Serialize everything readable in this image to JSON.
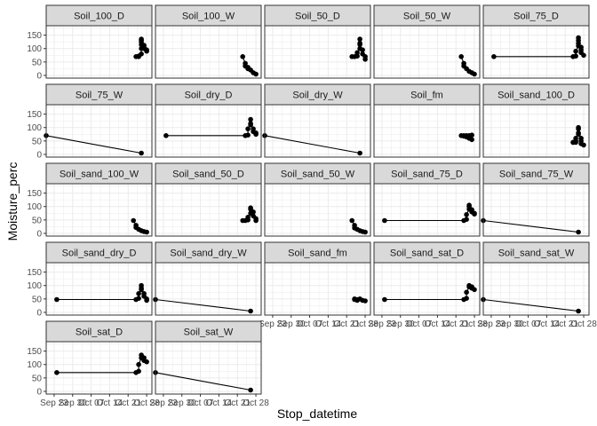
{
  "chart_data": {
    "type": "line",
    "xlabel": "Stop_datetime",
    "ylabel": "Moisture_perc",
    "ylim": [
      -10,
      185
    ],
    "y_ticks": [
      0,
      50,
      100,
      150
    ],
    "x_domain": [
      "2023-09-20",
      "2023-10-30"
    ],
    "x_ticks": [
      {
        "date": "2023-09-23",
        "label": "Sep 23"
      },
      {
        "date": "2023-09-30",
        "label": "Sep 30"
      },
      {
        "date": "2023-10-07",
        "label": "Oct 07"
      },
      {
        "date": "2023-10-14",
        "label": "Oct 14"
      },
      {
        "date": "2023-10-21",
        "label": "Oct 21"
      },
      {
        "date": "2023-10-28",
        "label": "Oct 28"
      }
    ],
    "grid": true,
    "colors": {
      "panel_border": "#333333",
      "strip_fill": "#d9d9d9",
      "grid": "#ebebeb",
      "series": "#000000"
    },
    "panels": [
      {
        "name": "Soil_100_D",
        "points": [
          [
            "2023-10-24",
            70
          ],
          [
            "2023-10-25",
            70
          ],
          [
            "2023-10-25",
            72
          ],
          [
            "2023-10-26",
            80
          ],
          [
            "2023-10-26",
            100
          ],
          [
            "2023-10-26",
            115
          ],
          [
            "2023-10-26",
            130
          ],
          [
            "2023-10-26",
            135
          ],
          [
            "2023-10-26",
            125
          ],
          [
            "2023-10-27",
            112
          ],
          [
            "2023-10-27",
            105
          ],
          [
            "2023-10-27",
            100
          ],
          [
            "2023-10-28",
            95
          ],
          [
            "2023-10-28",
            90
          ]
        ]
      },
      {
        "name": "Soil_100_W",
        "points": [
          [
            "2023-10-23",
            70
          ],
          [
            "2023-10-24",
            45
          ],
          [
            "2023-10-24",
            35
          ],
          [
            "2023-10-25",
            30
          ],
          [
            "2023-10-25",
            25
          ],
          [
            "2023-10-26",
            20
          ],
          [
            "2023-10-27",
            10
          ],
          [
            "2023-10-28",
            5
          ]
        ]
      },
      {
        "name": "Soil_50_D",
        "points": [
          [
            "2023-10-23",
            70
          ],
          [
            "2023-10-24",
            70
          ],
          [
            "2023-10-25",
            72
          ],
          [
            "2023-10-25",
            85
          ],
          [
            "2023-10-26",
            100
          ],
          [
            "2023-10-26",
            120
          ],
          [
            "2023-10-26",
            135
          ],
          [
            "2023-10-26",
            115
          ],
          [
            "2023-10-27",
            95
          ],
          [
            "2023-10-27",
            80
          ],
          [
            "2023-10-28",
            70
          ],
          [
            "2023-10-28",
            60
          ]
        ]
      },
      {
        "name": "Soil_50_W",
        "points": [
          [
            "2023-10-23",
            70
          ],
          [
            "2023-10-24",
            45
          ],
          [
            "2023-10-24",
            35
          ],
          [
            "2023-10-25",
            25
          ],
          [
            "2023-10-26",
            15
          ],
          [
            "2023-10-27",
            10
          ],
          [
            "2023-10-28",
            5
          ]
        ]
      },
      {
        "name": "Soil_75_D",
        "points": [
          [
            "2023-09-24",
            70
          ],
          [
            "2023-10-24",
            70
          ],
          [
            "2023-10-25",
            72
          ],
          [
            "2023-10-25",
            90
          ],
          [
            "2023-10-26",
            110
          ],
          [
            "2023-10-26",
            130
          ],
          [
            "2023-10-26",
            140
          ],
          [
            "2023-10-26",
            120
          ],
          [
            "2023-10-27",
            105
          ],
          [
            "2023-10-27",
            95
          ],
          [
            "2023-10-27",
            85
          ],
          [
            "2023-10-28",
            75
          ]
        ]
      },
      {
        "name": "Soil_75_W",
        "points": [
          [
            "2023-09-20",
            70
          ],
          [
            "2023-10-26",
            5
          ]
        ]
      },
      {
        "name": "Soil_dry_D",
        "points": [
          [
            "2023-09-24",
            70
          ],
          [
            "2023-10-24",
            70
          ],
          [
            "2023-10-25",
            72
          ],
          [
            "2023-10-25",
            95
          ],
          [
            "2023-10-26",
            115
          ],
          [
            "2023-10-26",
            130
          ],
          [
            "2023-10-26",
            110
          ],
          [
            "2023-10-27",
            95
          ],
          [
            "2023-10-27",
            85
          ],
          [
            "2023-10-28",
            80
          ],
          [
            "2023-10-28",
            75
          ]
        ]
      },
      {
        "name": "Soil_dry_W",
        "points": [
          [
            "2023-09-20",
            70
          ],
          [
            "2023-10-26",
            5
          ]
        ]
      },
      {
        "name": "Soil_fm",
        "points": [
          [
            "2023-10-23",
            70
          ],
          [
            "2023-10-24",
            70
          ],
          [
            "2023-10-24",
            68
          ],
          [
            "2023-10-25",
            70
          ],
          [
            "2023-10-25",
            65
          ],
          [
            "2023-10-26",
            70
          ],
          [
            "2023-10-26",
            60
          ],
          [
            "2023-10-27",
            55
          ],
          [
            "2023-10-27",
            72
          ]
        ]
      },
      {
        "name": "Soil_sand_100_D",
        "points": [
          [
            "2023-10-24",
            45
          ],
          [
            "2023-10-24",
            45
          ],
          [
            "2023-10-25",
            45
          ],
          [
            "2023-10-25",
            50
          ],
          [
            "2023-10-25",
            60
          ],
          [
            "2023-10-26",
            75
          ],
          [
            "2023-10-26",
            95
          ],
          [
            "2023-10-26",
            100
          ],
          [
            "2023-10-26",
            80
          ],
          [
            "2023-10-27",
            60
          ],
          [
            "2023-10-27",
            50
          ],
          [
            "2023-10-27",
            40
          ],
          [
            "2023-10-28",
            35
          ]
        ]
      },
      {
        "name": "Soil_sand_100_W",
        "points": [
          [
            "2023-10-23",
            48
          ],
          [
            "2023-10-24",
            30
          ],
          [
            "2023-10-24",
            22
          ],
          [
            "2023-10-25",
            15
          ],
          [
            "2023-10-26",
            10
          ],
          [
            "2023-10-27",
            7
          ],
          [
            "2023-10-28",
            5
          ]
        ]
      },
      {
        "name": "Soil_sand_50_D",
        "points": [
          [
            "2023-10-23",
            48
          ],
          [
            "2023-10-24",
            48
          ],
          [
            "2023-10-25",
            50
          ],
          [
            "2023-10-25",
            60
          ],
          [
            "2023-10-26",
            75
          ],
          [
            "2023-10-26",
            90
          ],
          [
            "2023-10-26",
            95
          ],
          [
            "2023-10-27",
            80
          ],
          [
            "2023-10-27",
            65
          ],
          [
            "2023-10-28",
            55
          ],
          [
            "2023-10-28",
            48
          ]
        ]
      },
      {
        "name": "Soil_sand_50_W",
        "points": [
          [
            "2023-10-23",
            48
          ],
          [
            "2023-10-24",
            30
          ],
          [
            "2023-10-24",
            20
          ],
          [
            "2023-10-25",
            15
          ],
          [
            "2023-10-26",
            10
          ],
          [
            "2023-10-27",
            7
          ],
          [
            "2023-10-28",
            5
          ]
        ]
      },
      {
        "name": "Soil_sand_75_D",
        "points": [
          [
            "2023-09-24",
            48
          ],
          [
            "2023-10-24",
            48
          ],
          [
            "2023-10-25",
            52
          ],
          [
            "2023-10-25",
            70
          ],
          [
            "2023-10-26",
            90
          ],
          [
            "2023-10-26",
            105
          ],
          [
            "2023-10-26",
            100
          ],
          [
            "2023-10-27",
            88
          ],
          [
            "2023-10-27",
            80
          ],
          [
            "2023-10-28",
            75
          ],
          [
            "2023-10-28",
            72
          ]
        ]
      },
      {
        "name": "Soil_sand_75_W",
        "points": [
          [
            "2023-09-20",
            48
          ],
          [
            "2023-10-26",
            5
          ]
        ]
      },
      {
        "name": "Soil_sand_dry_D",
        "points": [
          [
            "2023-09-24",
            48
          ],
          [
            "2023-10-24",
            48
          ],
          [
            "2023-10-25",
            52
          ],
          [
            "2023-10-25",
            70
          ],
          [
            "2023-10-26",
            90
          ],
          [
            "2023-10-26",
            100
          ],
          [
            "2023-10-26",
            85
          ],
          [
            "2023-10-27",
            70
          ],
          [
            "2023-10-27",
            60
          ],
          [
            "2023-10-28",
            50
          ],
          [
            "2023-10-28",
            45
          ]
        ]
      },
      {
        "name": "Soil_sand_dry_W",
        "points": [
          [
            "2023-09-20",
            48
          ],
          [
            "2023-10-26",
            5
          ]
        ]
      },
      {
        "name": "Soil_sand_fm",
        "points": [
          [
            "2023-10-24",
            48
          ],
          [
            "2023-10-24",
            50
          ],
          [
            "2023-10-25",
            48
          ],
          [
            "2023-10-25",
            45
          ],
          [
            "2023-10-26",
            50
          ],
          [
            "2023-10-27",
            45
          ],
          [
            "2023-10-28",
            43
          ]
        ]
      },
      {
        "name": "Soil_sand_sat_D",
        "points": [
          [
            "2023-09-24",
            48
          ],
          [
            "2023-10-24",
            48
          ],
          [
            "2023-10-25",
            52
          ],
          [
            "2023-10-25",
            75
          ],
          [
            "2023-10-26",
            95
          ],
          [
            "2023-10-26",
            100
          ],
          [
            "2023-10-27",
            95
          ],
          [
            "2023-10-27",
            90
          ],
          [
            "2023-10-28",
            85
          ]
        ]
      },
      {
        "name": "Soil_sand_sat_W",
        "points": [
          [
            "2023-09-20",
            48
          ],
          [
            "2023-10-26",
            5
          ]
        ]
      },
      {
        "name": "Soil_sat_D",
        "points": [
          [
            "2023-09-24",
            70
          ],
          [
            "2023-10-24",
            70
          ],
          [
            "2023-10-25",
            75
          ],
          [
            "2023-10-25",
            100
          ],
          [
            "2023-10-26",
            125
          ],
          [
            "2023-10-26",
            135
          ],
          [
            "2023-10-27",
            125
          ],
          [
            "2023-10-27",
            115
          ],
          [
            "2023-10-28",
            110
          ]
        ]
      },
      {
        "name": "Soil_sat_W",
        "points": [
          [
            "2023-09-20",
            70
          ],
          [
            "2023-10-26",
            5
          ]
        ]
      }
    ]
  }
}
